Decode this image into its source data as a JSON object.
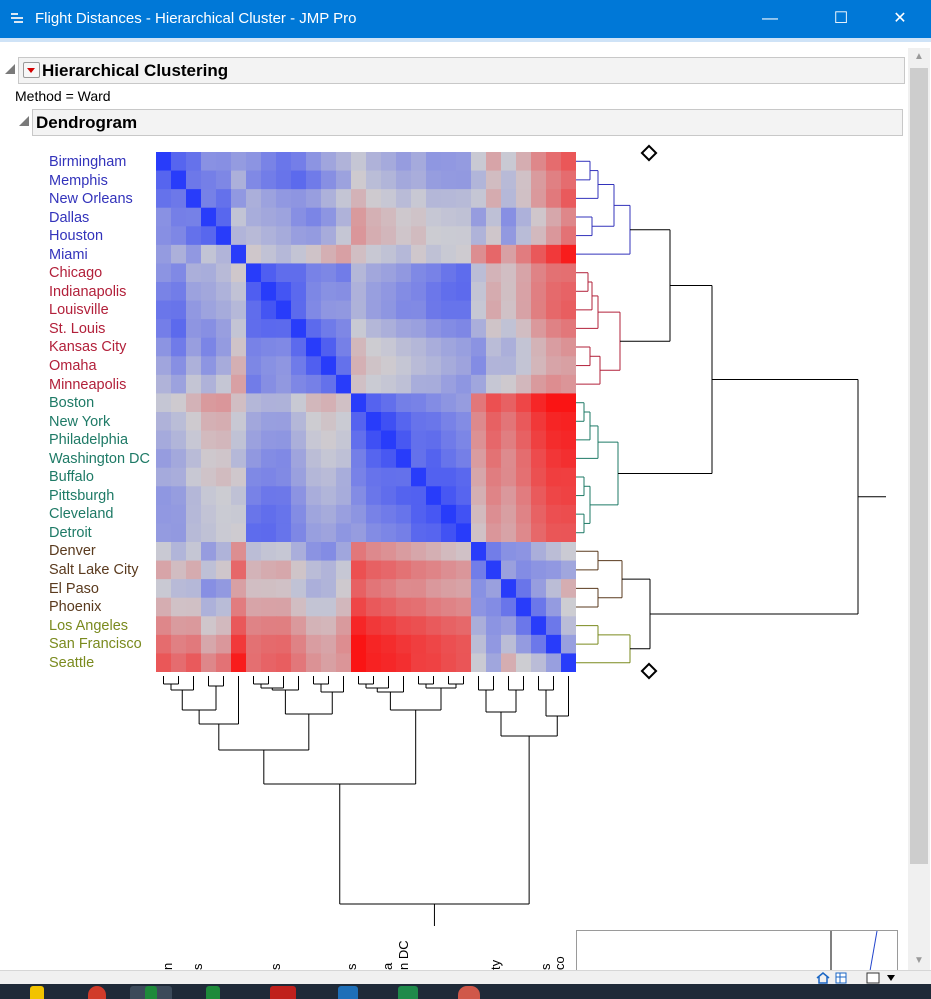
{
  "window": {
    "title": "Flight Distances - Hierarchical Cluster - JMP Pro",
    "minimize": "—",
    "maximize": "☐",
    "close": "✕"
  },
  "report": {
    "heading": "Hierarchical Clustering",
    "method": "Method = Ward",
    "dendrogram_heading": "Dendrogram"
  },
  "colors": {
    "cluster1": "#3333bb",
    "cluster2": "#b2203a",
    "cluster3": "#1e7a66",
    "cluster4": "#5a3a1e",
    "cluster5": "#7a8a1e"
  },
  "rows": [
    {
      "label": "Birmingham",
      "cluster": 1
    },
    {
      "label": "Memphis",
      "cluster": 1
    },
    {
      "label": "New Orleans",
      "cluster": 1
    },
    {
      "label": "Dallas",
      "cluster": 1
    },
    {
      "label": "Houston",
      "cluster": 1
    },
    {
      "label": "Miami",
      "cluster": 1
    },
    {
      "label": "Chicago",
      "cluster": 2
    },
    {
      "label": "Indianapolis",
      "cluster": 2
    },
    {
      "label": "Louisville",
      "cluster": 2
    },
    {
      "label": "St. Louis",
      "cluster": 2
    },
    {
      "label": "Kansas City",
      "cluster": 2
    },
    {
      "label": "Omaha",
      "cluster": 2
    },
    {
      "label": "Minneapolis",
      "cluster": 2
    },
    {
      "label": "Boston",
      "cluster": 3
    },
    {
      "label": "New York",
      "cluster": 3
    },
    {
      "label": "Philadelphia",
      "cluster": 3
    },
    {
      "label": "Washington DC",
      "cluster": 3
    },
    {
      "label": "Buffalo",
      "cluster": 3
    },
    {
      "label": "Pittsburgh",
      "cluster": 3
    },
    {
      "label": "Cleveland",
      "cluster": 3
    },
    {
      "label": "Detroit",
      "cluster": 3
    },
    {
      "label": "Denver",
      "cluster": 4
    },
    {
      "label": "Salt Lake City",
      "cluster": 4
    },
    {
      "label": "El Paso",
      "cluster": 4
    },
    {
      "label": "Phoenix",
      "cluster": 4
    },
    {
      "label": "Los Angeles",
      "cluster": 5
    },
    {
      "label": "San Francisco",
      "cluster": 5
    },
    {
      "label": "Seattle",
      "cluster": 5
    }
  ],
  "column_labels_visible": [
    {
      "text": "n"
    },
    {
      "text": "s"
    },
    {
      "text": "s"
    },
    {
      "text": "s"
    },
    {
      "text": "a"
    },
    {
      "text": "n DC"
    },
    {
      "text": "ty"
    },
    {
      "text": "s"
    },
    {
      "text": "co"
    }
  ]
}
